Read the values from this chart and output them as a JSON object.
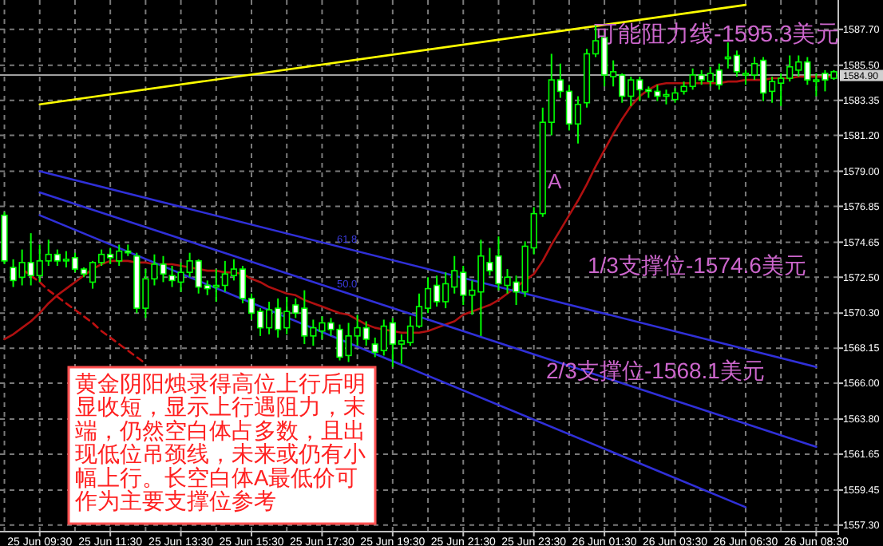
{
  "chart_data": {
    "type": "candlestick",
    "categories": [
      null,
      null,
      null,
      null,
      "25 Jun 09:30",
      null,
      null,
      null,
      null,
      null,
      null,
      null,
      "25 Jun 11:30",
      null,
      null,
      null,
      null,
      null,
      null,
      null,
      "25 Jun 13:30",
      null,
      null,
      null,
      null,
      null,
      null,
      null,
      "25 Jun 15:30",
      null,
      null,
      null,
      null,
      null,
      null,
      null,
      "25 Jun 17:30",
      null,
      null,
      null,
      null,
      null,
      null,
      null,
      "25 Jun 19:30",
      null,
      null,
      null,
      null,
      null,
      null,
      null,
      "25 Jun 21:30",
      null,
      null,
      null,
      null,
      null,
      null,
      null,
      "25 Jun 23:30",
      null,
      null,
      null,
      null,
      null,
      null,
      null,
      "26 Jun 01:30",
      null,
      null,
      null,
      null,
      null,
      null,
      null,
      "26 Jun 03:30",
      null,
      null,
      null,
      null,
      null,
      null,
      null,
      "26 Jun 06:30",
      null,
      null,
      null,
      null,
      null,
      null,
      null,
      "26 Jun 08:30",
      null,
      null
    ],
    "ohlc": [
      [
        1576.3,
        1576.5,
        1573.3,
        1573.5
      ],
      [
        1573.1,
        1573.6,
        1571.9,
        1572.3
      ],
      [
        1572.5,
        1574.2,
        1572.0,
        1573.4
      ],
      [
        1573.4,
        1575.2,
        1572.0,
        1572.6
      ],
      [
        1572.6,
        1574.5,
        1572.2,
        1573.5
      ],
      [
        1573.5,
        1574.8,
        1573.2,
        1573.9
      ],
      [
        1573.9,
        1574.2,
        1573.2,
        1573.5
      ],
      [
        1573.5,
        1574.1,
        1573.1,
        1573.6
      ],
      [
        1573.7,
        1574.0,
        1572.8,
        1573.0
      ],
      [
        1573.0,
        1573.1,
        1572.5,
        1572.7
      ],
      [
        1572.2,
        1573.5,
        1571.8,
        1573.4
      ],
      [
        1573.4,
        1574.2,
        1573.2,
        1573.9
      ],
      [
        1573.9,
        1574.3,
        1573.3,
        1573.7
      ],
      [
        1573.5,
        1574.5,
        1573.2,
        1574.1
      ],
      [
        1574.1,
        1574.5,
        1573.8,
        1574.0
      ],
      [
        1573.8,
        1574.0,
        1570.3,
        1570.6
      ],
      [
        1570.6,
        1573.0,
        1570.0,
        1572.4
      ],
      [
        1572.4,
        1573.9,
        1572.0,
        1573.3
      ],
      [
        1573.3,
        1573.8,
        1572.2,
        1572.7
      ],
      [
        1572.6,
        1573.2,
        1571.9,
        1572.3
      ],
      [
        1572.2,
        1573.4,
        1571.6,
        1572.8
      ],
      [
        1572.8,
        1574.0,
        1572.5,
        1573.5
      ],
      [
        1573.5,
        1573.6,
        1571.5,
        1571.9
      ],
      [
        1572.0,
        1572.3,
        1571.4,
        1571.8
      ],
      [
        1571.9,
        1573.0,
        1571.0,
        1572.0
      ],
      [
        1572.0,
        1573.5,
        1571.6,
        1572.7
      ],
      [
        1572.6,
        1573.6,
        1572.3,
        1573.0
      ],
      [
        1573.0,
        1573.2,
        1570.9,
        1571.2
      ],
      [
        1571.2,
        1571.5,
        1569.9,
        1570.3
      ],
      [
        1570.4,
        1570.6,
        1568.9,
        1569.4
      ],
      [
        1569.4,
        1571.0,
        1569.0,
        1570.5
      ],
      [
        1570.6,
        1571.2,
        1568.8,
        1569.3
      ],
      [
        1569.4,
        1571.3,
        1569.0,
        1570.4
      ],
      [
        1570.8,
        1571.2,
        1570.0,
        1570.3
      ],
      [
        1570.6,
        1571.7,
        1568.4,
        1568.9
      ],
      [
        1568.9,
        1569.9,
        1568.3,
        1569.4
      ],
      [
        1569.2,
        1570.1,
        1568.7,
        1569.7
      ],
      [
        1569.7,
        1570.0,
        1568.9,
        1569.3
      ],
      [
        1569.3,
        1569.6,
        1567.4,
        1567.6
      ],
      [
        1567.7,
        1569.7,
        1567.3,
        1568.9
      ],
      [
        1568.9,
        1570.2,
        1568.3,
        1569.4
      ],
      [
        1569.4,
        1569.8,
        1568.3,
        1568.7
      ],
      [
        1568.4,
        1568.8,
        1567.6,
        1567.9
      ],
      [
        1568.0,
        1569.9,
        1567.7,
        1569.5
      ],
      [
        1569.7,
        1570.0,
        1567.0,
        1568.4
      ],
      [
        1568.4,
        1569.0,
        1567.2,
        1568.6
      ],
      [
        1568.5,
        1570.1,
        1568.3,
        1569.5
      ],
      [
        1569.5,
        1571.5,
        1569.4,
        1570.7
      ],
      [
        1570.6,
        1572.5,
        1570.3,
        1571.8
      ],
      [
        1572.0,
        1572.6,
        1570.7,
        1571.0
      ],
      [
        1571.0,
        1572.8,
        1570.6,
        1572.1
      ],
      [
        1571.9,
        1573.8,
        1571.5,
        1572.9
      ],
      [
        1572.8,
        1573.2,
        1570.8,
        1571.4
      ],
      [
        1571.4,
        1572.3,
        1570.2,
        1571.7
      ],
      [
        1571.6,
        1574.8,
        1568.9,
        1573.8
      ],
      [
        1573.4,
        1574.3,
        1572.6,
        1572.9
      ],
      [
        1573.8,
        1575.0,
        1571.7,
        1572.1
      ],
      [
        1572.0,
        1573.0,
        1571.5,
        1572.5
      ],
      [
        1572.2,
        1572.6,
        1570.8,
        1571.6
      ],
      [
        1571.6,
        1574.7,
        1571.3,
        1574.4
      ],
      [
        1574.3,
        1576.8,
        1573.9,
        1576.4
      ],
      [
        1576.4,
        1582.9,
        1576.2,
        1582.0
      ],
      [
        1582.0,
        1586.2,
        1581.2,
        1584.6
      ],
      [
        1584.6,
        1585.6,
        1583.5,
        1583.9
      ],
      [
        1583.9,
        1584.3,
        1581.5,
        1581.9
      ],
      [
        1581.9,
        1583.6,
        1580.7,
        1583.1
      ],
      [
        1583.2,
        1586.5,
        1582.9,
        1586.2
      ],
      [
        1586.2,
        1588.0,
        1586.0,
        1587.0
      ],
      [
        1587.2,
        1587.5,
        1584.2,
        1584.9
      ],
      [
        1584.8,
        1585.8,
        1584.2,
        1585.1
      ],
      [
        1584.9,
        1585.0,
        1583.2,
        1583.6
      ],
      [
        1583.6,
        1584.8,
        1583.0,
        1584.6
      ],
      [
        1584.6,
        1584.8,
        1583.3,
        1584.0
      ],
      [
        1584.0,
        1584.2,
        1583.5,
        1583.9
      ],
      [
        1583.9,
        1584.3,
        1583.3,
        1583.6
      ],
      [
        1583.6,
        1584.0,
        1583.1,
        1583.7
      ],
      [
        1583.4,
        1584.1,
        1583.2,
        1583.8
      ],
      [
        1583.9,
        1584.5,
        1583.7,
        1584.2
      ],
      [
        1584.2,
        1585.3,
        1584.0,
        1584.9
      ],
      [
        1584.9,
        1585.2,
        1584.3,
        1584.6
      ],
      [
        1584.5,
        1585.4,
        1584.2,
        1585.0
      ],
      [
        1585.2,
        1585.6,
        1584.0,
        1584.3
      ],
      [
        1585.9,
        1586.9,
        1585.3,
        1586.0
      ],
      [
        1586.1,
        1586.4,
        1584.8,
        1585.1
      ],
      [
        1584.9,
        1585.2,
        1584.3,
        1585.0
      ],
      [
        1584.9,
        1586.0,
        1584.6,
        1585.6
      ],
      [
        1585.8,
        1586.0,
        1583.3,
        1583.8
      ],
      [
        1583.9,
        1584.8,
        1583.2,
        1584.5
      ],
      [
        1584.4,
        1585.0,
        1583.0,
        1584.7
      ],
      [
        1584.7,
        1586.1,
        1584.5,
        1585.4
      ],
      [
        1585.2,
        1586.1,
        1584.8,
        1585.7
      ],
      [
        1585.7,
        1586.0,
        1584.3,
        1584.6
      ],
      [
        1584.5,
        1585.0,
        1583.6,
        1584.6
      ],
      [
        1585.0,
        1585.2,
        1583.9,
        1584.6
      ],
      [
        1584.7,
        1585.2,
        1584.6,
        1585.1
      ]
    ],
    "series": [
      {
        "type": "line",
        "color": "#b01010",
        "values": [
          1568.7,
          1569.0,
          1569.4,
          1569.8,
          1570.3,
          1570.9,
          1571.4,
          1571.8,
          1572.2,
          1572.6,
          1573.0,
          1573.3,
          1573.5,
          1573.5,
          1573.5,
          1573.4,
          1573.4,
          1573.3,
          1573.3,
          1573.3,
          1573.2,
          1573.1,
          1573.0,
          1572.9,
          1572.9,
          1572.8,
          1572.8,
          1572.7,
          1572.4,
          1572.2,
          1571.9,
          1571.7,
          1571.5,
          1571.4,
          1571.1,
          1570.9,
          1570.7,
          1570.5,
          1570.3,
          1570.2,
          1569.9,
          1569.6,
          1569.4,
          1569.3,
          1569.2,
          1569.1,
          1569.1,
          1569.1,
          1569.2,
          1569.4,
          1569.6,
          1569.8,
          1570.2,
          1570.4,
          1570.6,
          1570.8,
          1571.1,
          1571.5,
          1571.9,
          1572.3,
          1572.7,
          1573.5,
          1574.5,
          1575.4,
          1576.3,
          1577.2,
          1578.2,
          1579.3,
          1580.3,
          1581.3,
          1582.2,
          1583.0,
          1583.6,
          1584.0,
          1584.3,
          1584.4,
          1584.4,
          1584.4,
          1584.4,
          1584.4,
          1584.4,
          1584.4,
          1584.5,
          1584.5,
          1584.6,
          1584.6,
          1584.6,
          1584.7,
          1584.7,
          1584.7,
          1584.8,
          1584.8,
          1584.8,
          1584.8,
          1584.8
        ]
      },
      {
        "type": "line",
        "color": "#c01010",
        "line_style": "dashed",
        "values": [
          null,
          null,
          1573.0,
          1572.6,
          1572.2,
          1571.7,
          1571.3,
          1570.9,
          1570.5,
          1570.1,
          1569.7,
          1569.2,
          1568.8,
          1568.4,
          1568.0,
          1567.6,
          1567.2,
          null,
          null,
          null,
          null,
          null,
          null,
          null,
          null,
          null,
          null,
          null,
          null,
          null,
          null,
          null,
          null,
          null,
          null,
          null,
          null,
          null,
          null,
          null,
          null,
          null,
          null,
          null,
          null,
          null,
          null,
          null,
          null,
          null,
          null,
          null,
          null,
          null,
          null,
          null,
          null,
          null,
          null,
          null,
          null,
          null,
          null,
          null,
          null,
          null,
          null,
          null,
          null,
          null,
          null,
          null,
          null,
          null,
          null,
          null,
          null,
          null,
          null,
          null,
          null,
          null,
          null,
          null,
          null,
          null,
          null,
          null,
          null,
          null,
          null,
          null,
          null,
          null,
          null
        ]
      },
      {
        "type": "line",
        "color": "#ffff00",
        "x": [
          "25 Jun 09:30",
          "26 Jun 06:30"
        ],
        "values": [
          1583.1,
          1589.2
        ]
      },
      {
        "type": "line",
        "color": "#3030d8",
        "x": [
          "25 Jun 09:30",
          "26 Jun 08:30"
        ],
        "values": [
          1579.0,
          1567.0
        ]
      },
      {
        "type": "line",
        "color": "#3030d8",
        "x": [
          "25 Jun 09:30",
          "26 Jun 08:30"
        ],
        "values": [
          1577.7,
          1562.1
        ]
      },
      {
        "type": "line",
        "color": "#3030d8",
        "x": [
          "25 Jun 09:30",
          "26 Jun 06:30"
        ],
        "values": [
          1576.3,
          1558.4
        ]
      }
    ],
    "ylim": [
      1556.9,
      1589.5
    ],
    "yticks": [
      {
        "value": 1557.3,
        "label": "1557.30"
      },
      {
        "value": 1559.45,
        "label": "1559.45"
      },
      {
        "value": 1561.65,
        "label": "1561.65"
      },
      {
        "value": 1563.8,
        "label": "1563.80"
      },
      {
        "value": 1566.0,
        "label": "1566.00"
      },
      {
        "value": 1568.15,
        "label": "1568.15"
      },
      {
        "value": 1570.3,
        "label": "1570.30"
      },
      {
        "value": 1572.5,
        "label": "1572.50"
      },
      {
        "value": 1574.65,
        "label": "1574.65"
      },
      {
        "value": 1576.85,
        "label": "1576.85"
      },
      {
        "value": 1579.0,
        "label": "1579.00"
      },
      {
        "value": 1581.2,
        "label": "1581.20"
      },
      {
        "value": 1583.35,
        "label": "1583.35"
      },
      {
        "value": 1585.5,
        "label": "1585.50"
      },
      {
        "value": 1587.7,
        "label": "1587.70"
      }
    ],
    "ref_lines": [
      {
        "axis": "y",
        "value": 1584.9,
        "label": "1584.90",
        "color": "#a0a0a0"
      }
    ],
    "grid": true,
    "annotations": [
      "黄金阴阳烛录得高位上行后明显收短，显示上行遇阻力，末端，仍然空白体占多数，且出现低位吊颈线，未来或仍有小幅上行。长空白体A最低价可作为主要支撑位参考",
      "可能阻力线-1595.3美元",
      "A",
      "1/3支撑位-1574.6美元",
      "2/3支撑位-1568.1美元",
      "61.8",
      "50.0"
    ]
  }
}
